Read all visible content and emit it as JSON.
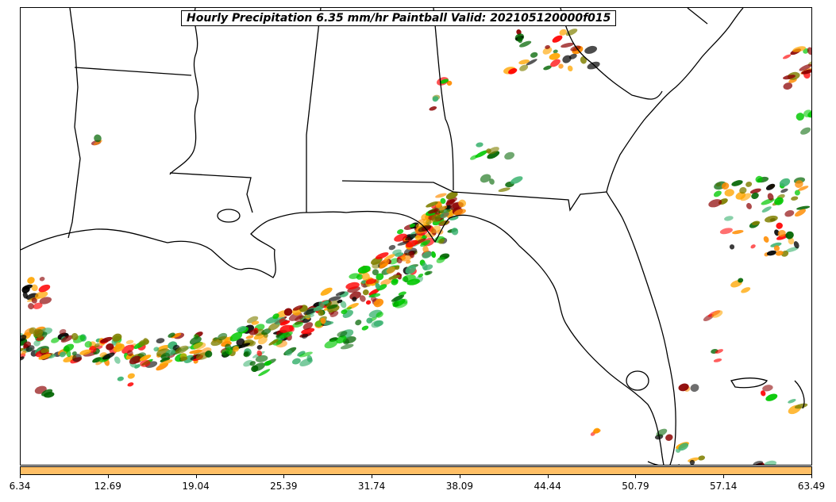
{
  "title": "Hourly Precipitation 6.35 mm/hr Paintball Valid: 202105120000f015",
  "colorbar": {
    "color": "#ffbf66",
    "tick_labels": [
      "6.34",
      "12.69",
      "19.04",
      "25.39",
      "31.74",
      "38.09",
      "44.44",
      "50.79",
      "57.14",
      "63.49"
    ]
  },
  "paint_colors": [
    "#000000",
    "#8b0000",
    "#ff0000",
    "#ff8c00",
    "#ffa500",
    "#808000",
    "#006400",
    "#00c800",
    "#3cb371"
  ],
  "map": {
    "region": "Southeastern United States and Gulf of Mexico",
    "features": [
      "coastline",
      "state-boundaries",
      "precipitation-paintballs"
    ]
  }
}
